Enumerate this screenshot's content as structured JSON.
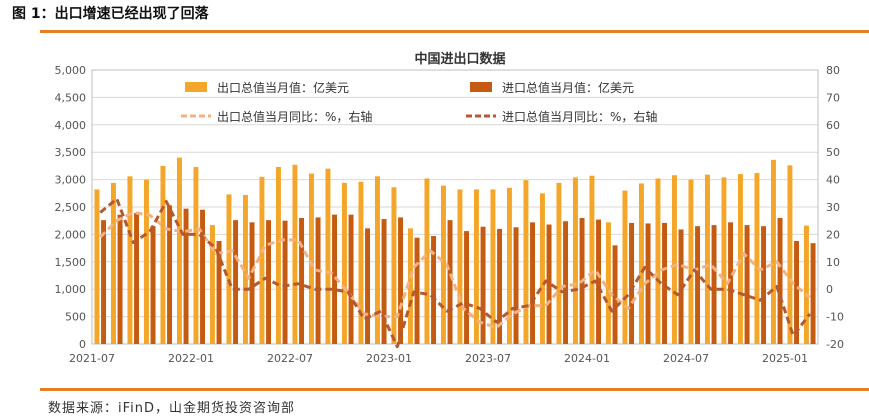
{
  "figure": {
    "title": "图 1：出口增速已经出现了回落",
    "source": "数据来源：iFinD，山金期货投资咨询部"
  },
  "colors": {
    "accent_rule": "#E67E22",
    "export_bar": "#F4A62A",
    "import_bar": "#C55A11",
    "export_yoy_line": "#F4B183",
    "import_yoy_line": "#B55A30"
  },
  "chart_data": {
    "type": "bar",
    "title": "中国进出口数据",
    "x": [
      "2021-07",
      "2021-08",
      "2021-09",
      "2021-10",
      "2021-11",
      "2021-12",
      "2022-01",
      "2022-02",
      "2022-03",
      "2022-04",
      "2022-05",
      "2022-06",
      "2022-07",
      "2022-08",
      "2022-09",
      "2022-10",
      "2022-11",
      "2022-12",
      "2023-01",
      "2023-02",
      "2023-03",
      "2023-04",
      "2023-05",
      "2023-06",
      "2023-07",
      "2023-08",
      "2023-09",
      "2023-10",
      "2023-11",
      "2023-12",
      "2024-01",
      "2024-02",
      "2024-03",
      "2024-04",
      "2024-05",
      "2024-06",
      "2024-07",
      "2024-08",
      "2024-09",
      "2024-10",
      "2024-11",
      "2024-12",
      "2025-01",
      "2025-02"
    ],
    "x_tick_labels": [
      "2021-07",
      "2022-01",
      "2022-07",
      "2023-01",
      "2023-07",
      "2024-01",
      "2024-07",
      "2025-01"
    ],
    "y_left": {
      "min": 0,
      "max": 5000,
      "step": 500,
      "ticks": [
        "0",
        "500",
        "1,000",
        "1,500",
        "2,000",
        "2,500",
        "3,000",
        "3,500",
        "4,000",
        "4,500",
        "5,000"
      ]
    },
    "y_right": {
      "min": -20,
      "max": 80,
      "step": 10,
      "ticks": [
        "-20",
        "-10",
        "0",
        "10",
        "20",
        "30",
        "40",
        "50",
        "60",
        "70",
        "80"
      ]
    },
    "grid": true,
    "legend_position": "top",
    "series": [
      {
        "name": "出口总值当月值：亿美元",
        "kind": "bar",
        "axis": "left",
        "values": [
          2820,
          2940,
          3060,
          3000,
          3250,
          3400,
          3230,
          2170,
          2730,
          2720,
          3050,
          3230,
          3270,
          3110,
          3200,
          2940,
          2960,
          3060,
          2860,
          2110,
          3020,
          2890,
          2820,
          2820,
          2820,
          2850,
          2990,
          2750,
          2940,
          3040,
          3070,
          2220,
          2800,
          2930,
          3020,
          3080,
          3000,
          3090,
          3040,
          3100,
          3120,
          3360,
          3260,
          2160
        ]
      },
      {
        "name": "进口总值当月值：亿美元",
        "kind": "bar",
        "axis": "left",
        "values": [
          2260,
          2360,
          2390,
          2150,
          2530,
          2470,
          2450,
          1880,
          2260,
          2220,
          2260,
          2250,
          2300,
          2310,
          2360,
          2360,
          2110,
          2280,
          2310,
          1940,
          1970,
          2260,
          2060,
          2140,
          2100,
          2130,
          2220,
          2180,
          2240,
          2300,
          2270,
          1800,
          2210,
          2200,
          2210,
          2090,
          2150,
          2170,
          2220,
          2170,
          2150,
          2300,
          1880,
          1840
        ]
      },
      {
        "name": "出口总值当月同比：%，右轴",
        "kind": "line",
        "axis": "right",
        "values": [
          19,
          25,
          28,
          27,
          22,
          21,
          22,
          13,
          14,
          4,
          16,
          18,
          18,
          7,
          6,
          -1,
          -9,
          -10,
          -10,
          8,
          14,
          9,
          -7,
          -12,
          -14,
          -9,
          -6,
          -6,
          1,
          2,
          7,
          -2,
          -7,
          2,
          7,
          9,
          7,
          9,
          2,
          13,
          7,
          10,
          2,
          -3
        ]
      },
      {
        "name": "进口总值当月同比：%，右轴",
        "kind": "line",
        "axis": "right",
        "values": [
          28,
          33,
          17,
          21,
          32,
          20,
          20,
          15,
          0,
          0,
          4,
          1,
          2,
          0,
          0,
          -1,
          -11,
          -8,
          -21,
          -1,
          -2,
          -8,
          -5,
          -7,
          -12,
          -7,
          -6,
          3,
          -1,
          0,
          3,
          -8,
          -2,
          8,
          2,
          -2,
          7,
          0,
          0,
          -2,
          -4,
          1,
          -17,
          -9
        ]
      }
    ]
  }
}
